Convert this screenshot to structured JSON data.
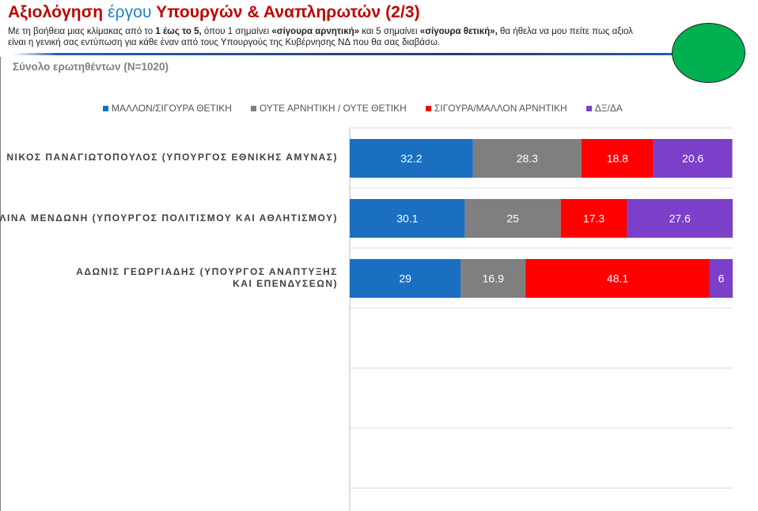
{
  "header": {
    "title_part1": "Αξιολόγηση ",
    "title_part2": "έργου",
    "title_part3": " Υπουργών & Αναπληρωτών (2/3)",
    "sub_t1": "Με τη βοήθεια μιας κλίμακας από το ",
    "sub_b1": "1 έως το 5,",
    "sub_t2": " όπου 1 σημαίνει ",
    "sub_b2": "«σίγουρα αρνητική»",
    "sub_t3": " και 5 σημαίνει ",
    "sub_b3": "«σίγουρα θετική»,",
    "sub_t4": "  θα ήθελα να μου πείτε πως αξιολ",
    "sub_line2": "είναι η γενική σας εντύπωση για κάθε έναν  από τους Υπουργούς της  Κυβέρνησης ΝΔ που θα σας διαβάσω.",
    "base_note": "Σύνολο ερωτηθέντων (N=1020)"
  },
  "colors": {
    "title_red": "#c00000",
    "title_accent": "#1f7fbf",
    "badge_green": "#00b050"
  },
  "chart_data": {
    "type": "bar",
    "orientation": "horizontal",
    "stacked": true,
    "categories": [
      "ΝΙΚΟΣ ΠΑΝΑΓΙΩΤΟΠΟΥΛΟΣ (ΥΠΟΥΡΓΟΣ ΕΘΝΙΚΗΣ ΑΜΥΝΑΣ)",
      "ΛΙΝΑ ΜΕΝΔΩΝΗ (ΥΠΟΥΡΓΟΣ ΠΟΛΙΤΙΣΜΟΥ ΚΑΙ ΑΘΛΗΤΙΣΜΟΥ)",
      "ΑΔΩΝΙΣ ΓΕΩΡΓΙΑΔΗΣ (ΥΠΟΥΡΓΟΣ ΑΝΑΠΤΥΞΗΣ ΚΑΙ ΕΠΕΝΔΥΣΕΩΝ)"
    ],
    "series": [
      {
        "name": "ΜΑΛΛΟΝ/ΣΙΓΟΥΡΑ ΘΕΤΙΚΗ",
        "color": "#1a6fc1",
        "values": [
          32.2,
          30.1,
          29
        ]
      },
      {
        "name": "ΟΥΤΕ ΑΡΝΗΤΙΚΗ / ΟΥΤΕ ΘΕΤΙΚΗ",
        "color": "#7f7f7f",
        "values": [
          28.3,
          25,
          16.9
        ]
      },
      {
        "name": "ΣΙΓΟΥΡΑ/ΜΑΛΛΟΝ ΑΡΝΗΤΙΚΗ",
        "color": "#ff0000",
        "values": [
          18.8,
          17.3,
          48.1
        ]
      },
      {
        "name": "ΔΞ/ΔΑ",
        "color": "#7b3fc9",
        "values": [
          20.6,
          27.6,
          6
        ]
      }
    ],
    "xlim": [
      0,
      100
    ],
    "grid": true,
    "legend_position": "top",
    "data_labels": true
  }
}
